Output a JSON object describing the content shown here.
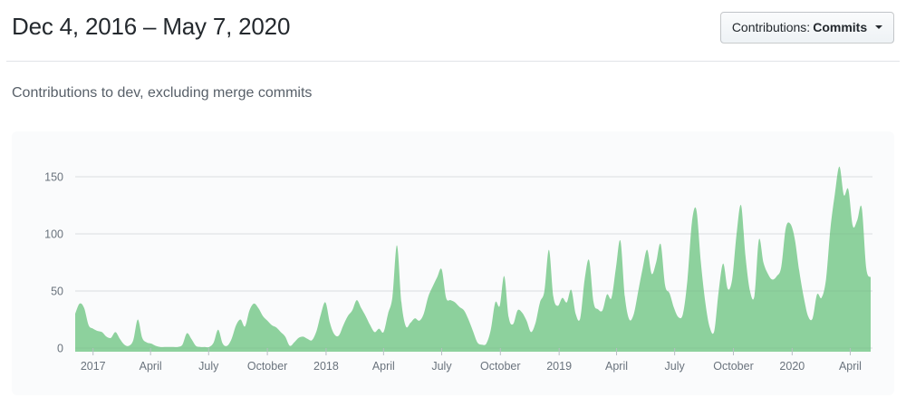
{
  "header": {
    "title": "Dec 4, 2016 – May 7, 2020",
    "dropdown": {
      "label": "Contributions:",
      "selected": "Commits"
    }
  },
  "subtitle": "Contributions to dev, excluding merge commits",
  "colors": {
    "area_green": "#8dd19d",
    "grid": "#e7e9ec",
    "grid_overlay": "rgba(27,31,35,0.055)",
    "tick": "#b8bec4",
    "axis_text": "#6a737d",
    "chart_bg": "#fafbfc",
    "divider": "#e1e4e8"
  },
  "chart_data": {
    "type": "area",
    "title": "",
    "x_start_label": "Dec 4, 2016",
    "x_end_label": "May 7, 2020",
    "x_unit": "week",
    "ylim": [
      0,
      165
    ],
    "grid": true,
    "legend": "none",
    "y_ticks": [
      0,
      50,
      100,
      150
    ],
    "x_ticks": [
      {
        "week": 4.0,
        "label": "2017"
      },
      {
        "week": 16.86,
        "label": "April"
      },
      {
        "week": 29.86,
        "label": "July"
      },
      {
        "week": 43.0,
        "label": "October"
      },
      {
        "week": 56.14,
        "label": "2018"
      },
      {
        "week": 69.0,
        "label": "April"
      },
      {
        "week": 82.0,
        "label": "July"
      },
      {
        "week": 95.14,
        "label": "October"
      },
      {
        "week": 108.29,
        "label": "2019"
      },
      {
        "week": 121.14,
        "label": "April"
      },
      {
        "week": 134.14,
        "label": "July"
      },
      {
        "week": 147.29,
        "label": "October"
      },
      {
        "week": 160.43,
        "label": "2020"
      },
      {
        "week": 173.43,
        "label": "April"
      }
    ],
    "series": [
      {
        "name": "Commits",
        "cadence": "weekly",
        "values": [
          30,
          39,
          35,
          20,
          17,
          15,
          14,
          10,
          9,
          14,
          8,
          3,
          2,
          7,
          25,
          9,
          5,
          4,
          2,
          1,
          1,
          1,
          1,
          1,
          3,
          13,
          8,
          2,
          1,
          1,
          1,
          5,
          16,
          4,
          2,
          8,
          20,
          25,
          19,
          33,
          39,
          35,
          28,
          24,
          20,
          18,
          14,
          10,
          2,
          5,
          9,
          10,
          8,
          7,
          15,
          30,
          40,
          22,
          12,
          11,
          20,
          28,
          33,
          42,
          35,
          28,
          20,
          14,
          17,
          14,
          30,
          45,
          90,
          40,
          19,
          22,
          26,
          24,
          30,
          45,
          54,
          62,
          69,
          44,
          42,
          40,
          36,
          33,
          25,
          15,
          5,
          3,
          4,
          16,
          40,
          37,
          63,
          27,
          21,
          33,
          31,
          24,
          14,
          22,
          40,
          50,
          86,
          45,
          37,
          44,
          40,
          51,
          30,
          26,
          60,
          77,
          40,
          34,
          33,
          47,
          44,
          70,
          94,
          45,
          25,
          30,
          50,
          70,
          86,
          65,
          75,
          91,
          55,
          48,
          35,
          27,
          30,
          60,
          110,
          121,
          75,
          40,
          18,
          15,
          50,
          74,
          52,
          60,
          100,
          125,
          80,
          50,
          46,
          95,
          75,
          65,
          60,
          63,
          71,
          105,
          109,
          96,
          68,
          45,
          28,
          26,
          47,
          44,
          60,
          105,
          135,
          159,
          134,
          139,
          107,
          112,
          123,
          70,
          62
        ]
      }
    ]
  }
}
